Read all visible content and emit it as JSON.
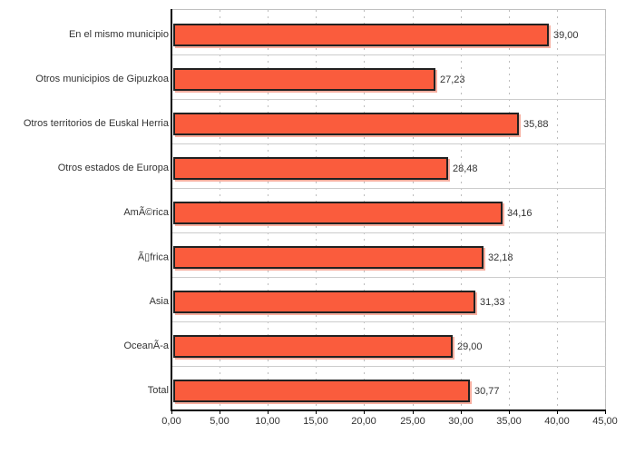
{
  "chart_data": {
    "type": "bar",
    "orientation": "horizontal",
    "title": "",
    "categories": [
      "En el mismo municipio",
      "Otros municipios de Gipuzkoa",
      "Otros territorios de Euskal Herria",
      "Otros estados de Europa",
      "AmÃ©rica",
      "Ã▯frica",
      "Asia",
      "OceanÃ-a",
      "Total"
    ],
    "values": [
      39.0,
      27.23,
      35.88,
      28.48,
      34.16,
      32.18,
      31.33,
      29.0,
      30.77
    ],
    "value_labels": [
      "39,00",
      "27,23",
      "35,88",
      "28,48",
      "34,16",
      "32,18",
      "31,33",
      "29,00",
      "30,77"
    ],
    "xlabel": "",
    "ylabel": "",
    "xlim": [
      0,
      45
    ],
    "x_tick_values": [
      0,
      5,
      10,
      15,
      20,
      25,
      30,
      35,
      40,
      45
    ],
    "x_tick_labels": [
      "0,00",
      "5,00",
      "10,00",
      "15,00",
      "20,00",
      "25,00",
      "30,00",
      "35,00",
      "40,00",
      "45,00"
    ],
    "grid": {
      "vertical": "dotted",
      "horizontal": "solid-category-boundaries"
    },
    "legend": "none",
    "colors": {
      "bar_fill": "#FA5C3D",
      "bar_border": "#212121",
      "bar_shadow": "rgba(240,95,65,0.5)",
      "axis_line": "#000000",
      "gridline_dotted": "#BDBDBD",
      "gridline_horizontal": "#CCCCCC",
      "plot_border": "#C0C0C0",
      "label_text": "#333333",
      "background": "#FFFFFF"
    }
  }
}
